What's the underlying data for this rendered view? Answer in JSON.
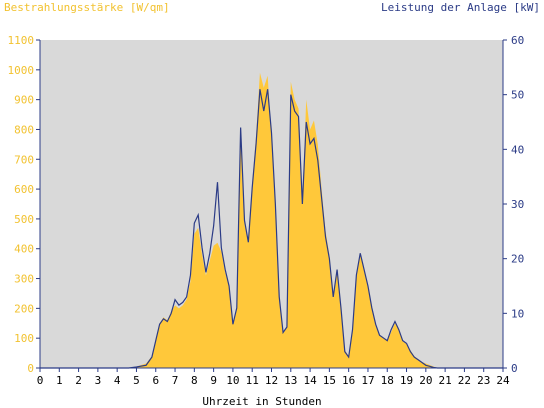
{
  "colors": {
    "plot_background": "#d9d9d9",
    "irradiance_fill": "#ffc83a",
    "power_line": "#2b3b86",
    "left_axis_text": "#f2c230",
    "right_axis_text": "#2b3b86"
  },
  "chart_data": {
    "type": "area",
    "title_left": "Bestrahlungsstärke [W/qm]",
    "title_right": "Leistung der Anlage [kW]",
    "xlabel": "Uhrzeit in Stunden",
    "xlim": [
      0,
      24
    ],
    "x_ticks": [
      "0",
      "1",
      "2",
      "3",
      "4",
      "5",
      "6",
      "7",
      "8",
      "9",
      "10",
      "11",
      "12",
      "13",
      "14",
      "15",
      "16",
      "17",
      "18",
      "19",
      "20",
      "21",
      "22",
      "23",
      "24"
    ],
    "y_left": {
      "range": [
        0,
        1100
      ],
      "ticks": [
        "0",
        "100",
        "200",
        "300",
        "400",
        "500",
        "600",
        "700",
        "800",
        "900",
        "1000",
        "1100"
      ]
    },
    "y_right": {
      "range": [
        0,
        60
      ],
      "ticks": [
        "0",
        "10",
        "20",
        "30",
        "40",
        "50",
        "60"
      ]
    },
    "grid": false,
    "series": [
      {
        "name": "Bestrahlungsstärke [W/qm]",
        "axis": "left",
        "style": "area",
        "x": [
          0,
          4.6,
          5.0,
          5.5,
          5.8,
          6.0,
          6.2,
          6.4,
          6.6,
          6.8,
          7.0,
          7.2,
          7.4,
          7.6,
          7.8,
          8.0,
          8.2,
          8.4,
          8.6,
          8.8,
          9.0,
          9.2,
          9.4,
          9.6,
          9.8,
          10.0,
          10.2,
          10.4,
          10.6,
          10.8,
          11.0,
          11.2,
          11.4,
          11.6,
          11.8,
          12.0,
          12.2,
          12.4,
          12.6,
          12.8,
          13.0,
          13.2,
          13.4,
          13.6,
          13.8,
          14.0,
          14.2,
          14.4,
          14.6,
          14.8,
          15.0,
          15.2,
          15.4,
          15.6,
          15.8,
          16.0,
          16.2,
          16.4,
          16.6,
          16.8,
          17.0,
          17.2,
          17.4,
          17.6,
          17.8,
          18.0,
          18.2,
          18.4,
          18.6,
          18.8,
          19.0,
          19.2,
          19.4,
          19.6,
          19.8,
          20.0,
          20.2,
          20.4,
          20.6,
          24
        ],
        "y": [
          0,
          0,
          5,
          15,
          40,
          100,
          150,
          170,
          160,
          190,
          210,
          200,
          210,
          230,
          290,
          450,
          470,
          380,
          310,
          360,
          410,
          420,
          390,
          320,
          280,
          150,
          200,
          790,
          480,
          430,
          620,
          780,
          990,
          940,
          980,
          780,
          540,
          250,
          120,
          140,
          960,
          900,
          870,
          560,
          900,
          800,
          830,
          750,
          600,
          460,
          380,
          250,
          320,
          200,
          60,
          40,
          120,
          300,
          380,
          330,
          280,
          210,
          150,
          110,
          100,
          90,
          120,
          150,
          130,
          90,
          80,
          60,
          40,
          30,
          20,
          15,
          10,
          5,
          0,
          0
        ]
      },
      {
        "name": "Leistung der Anlage [kW]",
        "axis": "right",
        "style": "line",
        "x": [
          0,
          4.6,
          5.0,
          5.5,
          5.8,
          6.0,
          6.2,
          6.4,
          6.6,
          6.8,
          7.0,
          7.2,
          7.4,
          7.6,
          7.8,
          8.0,
          8.2,
          8.4,
          8.6,
          8.8,
          9.0,
          9.2,
          9.4,
          9.6,
          9.8,
          10.0,
          10.2,
          10.4,
          10.6,
          10.8,
          11.0,
          11.2,
          11.4,
          11.6,
          11.8,
          12.0,
          12.2,
          12.4,
          12.6,
          12.8,
          13.0,
          13.2,
          13.4,
          13.6,
          13.8,
          14.0,
          14.2,
          14.4,
          14.6,
          14.8,
          15.0,
          15.2,
          15.4,
          15.6,
          15.8,
          16.0,
          16.2,
          16.4,
          16.6,
          16.8,
          17.0,
          17.2,
          17.4,
          17.6,
          17.8,
          18.0,
          18.2,
          18.4,
          18.6,
          18.8,
          19.0,
          19.2,
          19.4,
          19.6,
          19.8,
          20.0,
          20.2,
          20.4,
          20.6,
          24
        ],
        "y": [
          0,
          0,
          0.2,
          0.5,
          2.0,
          5.0,
          8.0,
          9.0,
          8.5,
          10.0,
          12.5,
          11.5,
          12.0,
          13.0,
          17.0,
          26.5,
          28.0,
          22.0,
          17.5,
          21.0,
          26.0,
          34.0,
          22.0,
          18.0,
          15.0,
          8.0,
          11.0,
          44.0,
          27.0,
          23.0,
          33.0,
          41.0,
          51.0,
          47.0,
          51.0,
          43.0,
          30.0,
          13.0,
          6.5,
          7.5,
          50.0,
          47.0,
          46.0,
          30.0,
          45.0,
          41.0,
          42.0,
          38.0,
          31.0,
          24.0,
          20.0,
          13.0,
          18.0,
          11.0,
          3.0,
          2.0,
          7.0,
          17.0,
          21.0,
          18.0,
          15.0,
          11.0,
          8.0,
          6.0,
          5.5,
          5.0,
          7.0,
          8.5,
          7.0,
          5.0,
          4.5,
          3.0,
          2.0,
          1.5,
          1.0,
          0.5,
          0.3,
          0.1,
          0,
          0
        ]
      }
    ]
  }
}
